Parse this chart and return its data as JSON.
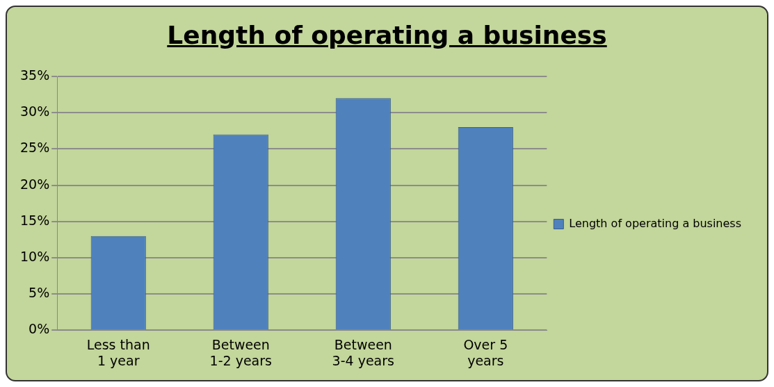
{
  "chart_data": {
    "type": "bar",
    "title": "Length of operating a business",
    "categories": [
      "Less than 1 year",
      "Between 1-2 years",
      "Between 3-4 years",
      "Over 5 years"
    ],
    "series": [
      {
        "name": "Length of operating a business",
        "color": "#4f81bd",
        "values": [
          13,
          27,
          32,
          28
        ]
      }
    ],
    "ylim": [
      0,
      35
    ],
    "yticks": [
      {
        "value": 0,
        "label": "0%"
      },
      {
        "value": 5,
        "label": "5%"
      },
      {
        "value": 10,
        "label": "10%"
      },
      {
        "value": 15,
        "label": "15%"
      },
      {
        "value": 20,
        "label": "20%"
      },
      {
        "value": 25,
        "label": "25%"
      },
      {
        "value": 30,
        "label": "30%"
      },
      {
        "value": 35,
        "label": "35%"
      }
    ],
    "grid": "y",
    "legend": "right"
  }
}
